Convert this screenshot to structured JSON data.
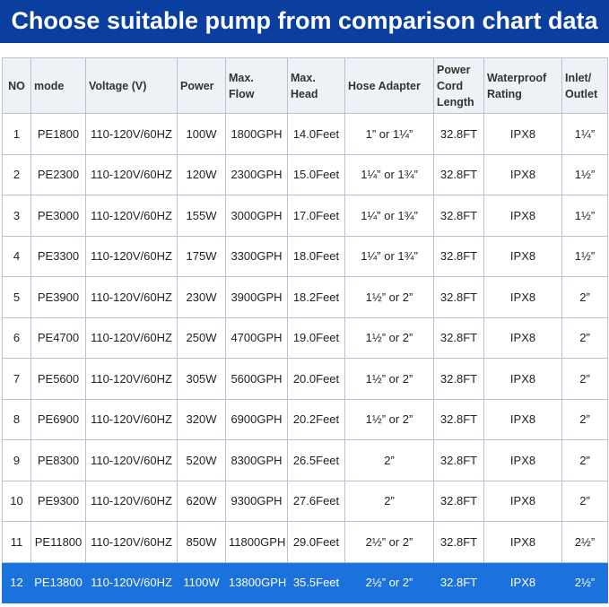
{
  "header": {
    "title": "Choose suitable pump from comparison chart data"
  },
  "table": {
    "columns": [
      "NO",
      "mode",
      "Voltage (V)",
      "Power",
      "Max.\nFlow",
      "Max.\nHead",
      "Hose Adapter",
      "Power\nCord\nLength",
      "Waterproof\nRating",
      "Inlet/\nOutlet"
    ],
    "rows": [
      [
        "1",
        "PE1800",
        "110-120V/60HZ",
        "100W",
        "1800GPH",
        "14.0Feet",
        "1” or 1¼”",
        "32.8FT",
        "IPX8",
        "1¼”"
      ],
      [
        "2",
        "PE2300",
        "110-120V/60HZ",
        "120W",
        "2300GPH",
        "15.0Feet",
        "1¼” or 1¾”",
        "32.8FT",
        "IPX8",
        "1½”"
      ],
      [
        "3",
        "PE3000",
        "110-120V/60HZ",
        "155W",
        "3000GPH",
        "17.0Feet",
        "1¼” or 1¾”",
        "32.8FT",
        "IPX8",
        "1½”"
      ],
      [
        "4",
        "PE3300",
        "110-120V/60HZ",
        "175W",
        "3300GPH",
        "18.0Feet",
        "1¼” or 1¾”",
        "32.8FT",
        "IPX8",
        "1½”"
      ],
      [
        "5",
        "PE3900",
        "110-120V/60HZ",
        "230W",
        "3900GPH",
        "18.2Feet",
        "1½” or 2”",
        "32.8FT",
        "IPX8",
        "2”"
      ],
      [
        "6",
        "PE4700",
        "110-120V/60HZ",
        "250W",
        "4700GPH",
        "19.0Feet",
        "1½” or 2”",
        "32.8FT",
        "IPX8",
        "2”"
      ],
      [
        "7",
        "PE5600",
        "110-120V/60HZ",
        "305W",
        "5600GPH",
        "20.0Feet",
        "1½” or 2”",
        "32.8FT",
        "IPX8",
        "2”"
      ],
      [
        "8",
        "PE6900",
        "110-120V/60HZ",
        "320W",
        "6900GPH",
        "20.2Feet",
        "1½” or 2”",
        "32.8FT",
        "IPX8",
        "2”"
      ],
      [
        "9",
        "PE8300",
        "110-120V/60HZ",
        "520W",
        "8300GPH",
        "26.5Feet",
        "2”",
        "32.8FT",
        "IPX8",
        "2”"
      ],
      [
        "10",
        "PE9300",
        "110-120V/60HZ",
        "620W",
        "9300GPH",
        "27.6Feet",
        "2”",
        "32.8FT",
        "IPX8",
        "2”"
      ],
      [
        "11",
        "PE11800",
        "110-120V/60HZ",
        "850W",
        "11800GPH",
        "29.0Feet",
        "2½” or 2”",
        "32.8FT",
        "IPX8",
        "2½”"
      ],
      [
        "12",
        "PE13800",
        "110-120V/60HZ",
        "1100W",
        "13800GPH",
        "35.5Feet",
        "2½” or 2”",
        "32.8FT",
        "IPX8",
        "2½”"
      ]
    ]
  }
}
